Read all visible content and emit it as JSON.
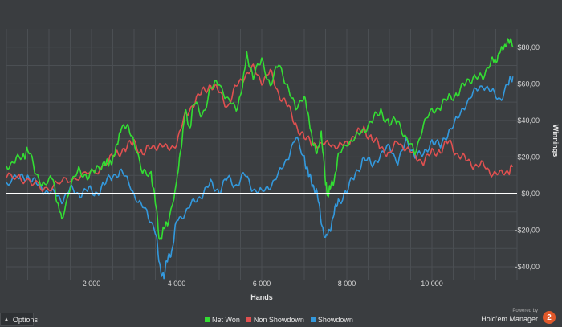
{
  "chart_data": {
    "type": "line",
    "xlabel": "Hands",
    "ylabel": "Winnings",
    "xlim": [
      0,
      12000
    ],
    "ylim": [
      -47,
      90
    ],
    "grid": true,
    "legend_position": "bottom-center",
    "x_ticks": [
      2000,
      4000,
      6000,
      8000,
      10000
    ],
    "x_tick_labels": [
      "2 000",
      "4 000",
      "6 000",
      "8 000",
      "10 000"
    ],
    "y_ticks": [
      -40,
      -20,
      0,
      20,
      40,
      60,
      80
    ],
    "y_tick_labels": [
      "-$40,00",
      "-$20,00",
      "$0,00",
      "$20,00",
      "$40,00",
      "$60,00",
      "$80,00"
    ],
    "series": [
      {
        "name": "Net Won",
        "color": "#33dd33",
        "x": [
          0,
          200,
          400,
          500,
          700,
          900,
          1100,
          1200,
          1300,
          1500,
          1700,
          1900,
          2100,
          2300,
          2400,
          2500,
          2600,
          2700,
          2850,
          3000,
          3200,
          3400,
          3500,
          3600,
          3700,
          3800,
          4000,
          4100,
          4200,
          4300,
          4400,
          4600,
          4800,
          5000,
          5200,
          5400,
          5550,
          5650,
          5800,
          6000,
          6200,
          6400,
          6600,
          6800,
          7000,
          7100,
          7200,
          7300,
          7400,
          7500,
          7550,
          7600,
          7700,
          7800,
          8000,
          8200,
          8400,
          8600,
          8800,
          9000,
          9200,
          9400,
          9600,
          9800,
          10000,
          10200,
          10400,
          10600,
          10800,
          11000,
          11200,
          11400,
          11500,
          11600,
          11700,
          11800,
          11900
        ],
        "y": [
          15,
          18,
          20,
          25,
          10,
          5,
          8,
          -5,
          -15,
          5,
          12,
          10,
          12,
          18,
          15,
          20,
          25,
          38,
          35,
          30,
          10,
          12,
          -5,
          -25,
          -20,
          -15,
          5,
          25,
          45,
          35,
          50,
          42,
          58,
          60,
          52,
          45,
          60,
          75,
          65,
          72,
          60,
          70,
          60,
          45,
          55,
          40,
          30,
          20,
          35,
          5,
          0,
          2,
          8,
          20,
          28,
          30,
          35,
          40,
          45,
          38,
          40,
          30,
          22,
          38,
          45,
          48,
          52,
          55,
          60,
          65,
          62,
          75,
          70,
          80,
          78,
          86,
          80
        ]
      },
      {
        "name": "Non Showdown",
        "color": "#e05050",
        "x": [
          0,
          300,
          600,
          900,
          1200,
          1500,
          1800,
          2100,
          2400,
          2600,
          2800,
          3000,
          3200,
          3400,
          3600,
          3800,
          4000,
          4200,
          4400,
          4600,
          4800,
          5000,
          5200,
          5400,
          5600,
          5800,
          6000,
          6200,
          6400,
          6600,
          6800,
          7000,
          7200,
          7400,
          7600,
          7800,
          8000,
          8200,
          8400,
          8600,
          8800,
          9000,
          9200,
          9400,
          9600,
          9800,
          10000,
          10200,
          10400,
          10600,
          10800,
          11000,
          11200,
          11400,
          11600,
          11800,
          11900
        ],
        "y": [
          8,
          10,
          5,
          3,
          5,
          8,
          10,
          12,
          18,
          22,
          25,
          28,
          22,
          25,
          27,
          24,
          28,
          42,
          50,
          55,
          60,
          55,
          48,
          58,
          65,
          68,
          62,
          66,
          55,
          48,
          38,
          30,
          28,
          26,
          28,
          25,
          28,
          32,
          35,
          30,
          25,
          22,
          28,
          25,
          20,
          18,
          22,
          24,
          28,
          22,
          18,
          16,
          15,
          12,
          10,
          13,
          15
        ]
      },
      {
        "name": "Showdown",
        "color": "#3399dd",
        "x": [
          0,
          300,
          500,
          700,
          900,
          1100,
          1300,
          1500,
          1700,
          1900,
          2100,
          2300,
          2500,
          2700,
          2900,
          3100,
          3300,
          3500,
          3600,
          3700,
          3800,
          3900,
          4000,
          4200,
          4400,
          4600,
          4800,
          5000,
          5200,
          5400,
          5600,
          5800,
          6000,
          6200,
          6400,
          6600,
          6800,
          7000,
          7100,
          7200,
          7300,
          7400,
          7500,
          7600,
          7700,
          7800,
          8000,
          8200,
          8400,
          8600,
          8800,
          9000,
          9200,
          9400,
          9600,
          9800,
          10000,
          10200,
          10400,
          10600,
          10800,
          11000,
          11200,
          11400,
          11600,
          11800,
          11900
        ],
        "y": [
          7,
          8,
          10,
          5,
          2,
          0,
          -3,
          2,
          0,
          2,
          0,
          5,
          10,
          12,
          5,
          -5,
          -10,
          -20,
          -40,
          -45,
          -35,
          -30,
          -15,
          -10,
          -5,
          0,
          5,
          2,
          8,
          5,
          10,
          3,
          0,
          5,
          10,
          20,
          30,
          20,
          10,
          5,
          0,
          -15,
          -25,
          -20,
          -10,
          -5,
          2,
          10,
          20,
          15,
          22,
          25,
          18,
          28,
          22,
          20,
          30,
          25,
          35,
          40,
          50,
          55,
          60,
          55,
          52,
          60,
          64
        ]
      }
    ]
  },
  "ui": {
    "options_label": "Options",
    "brand_powered": "Powered by",
    "brand_name": "Hold'em Manager",
    "brand_badge": "2"
  }
}
